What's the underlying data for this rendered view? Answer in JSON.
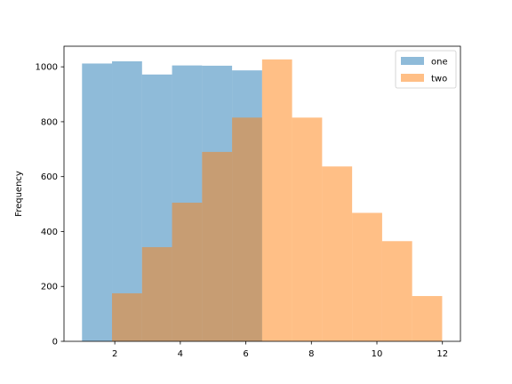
{
  "chart_data": {
    "type": "bar",
    "title": "",
    "xlabel": "",
    "ylabel": "Frequency",
    "xlim": [
      0.45,
      12.55
    ],
    "ylim": [
      0,
      1075
    ],
    "xticks": [
      2,
      4,
      6,
      8,
      10,
      12
    ],
    "yticks": [
      0,
      200,
      400,
      600,
      800,
      1000
    ],
    "grid": false,
    "legend_position": "top-right",
    "series": [
      {
        "name": "one",
        "color": "#1f77b4",
        "alpha": 0.5,
        "bin_edges": [
          1.0,
          1.916,
          2.832,
          3.748,
          4.664,
          5.58,
          6.496
        ],
        "values": [
          1012,
          1020,
          972,
          1005,
          1004,
          987
        ]
      },
      {
        "name": "two",
        "color": "#ff7f0e",
        "alpha": 0.5,
        "bin_edges": [
          1.916,
          2.832,
          3.748,
          4.664,
          5.58,
          6.496,
          7.412,
          8.328,
          9.244,
          10.16,
          11.076,
          11.992
        ],
        "values": [
          175,
          343,
          505,
          690,
          815,
          1027,
          815,
          637,
          468,
          365,
          165
        ]
      }
    ]
  }
}
